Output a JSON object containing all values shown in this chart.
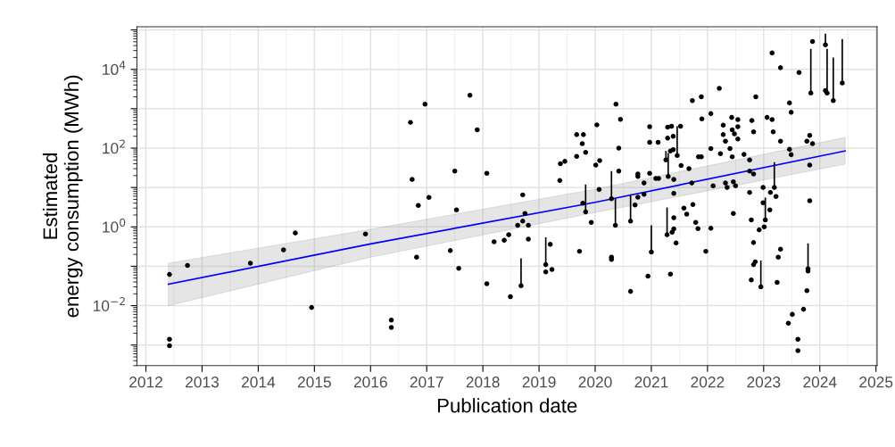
{
  "chart_data": {
    "type": "scatter",
    "xlabel": "Publication date",
    "ylabel": "Estimated\nenergy consumption (MWh)",
    "log": "y",
    "grid": true,
    "xlim": [
      2011.84,
      2025.02
    ],
    "xticks": [
      2012,
      2013,
      2014,
      2015,
      2016,
      2017,
      2018,
      2019,
      2020,
      2021,
      2022,
      2023,
      2024,
      2025
    ],
    "ylim": [
      0.0003,
      120000
    ],
    "yticks": [
      {
        "value": 0.001,
        "label": null
      },
      {
        "value": 0.01,
        "label": "10$^{−2}$"
      },
      {
        "value": 0.1,
        "label": null
      },
      {
        "value": 1,
        "label": "10$^{0}$"
      },
      {
        "value": 10,
        "label": null
      },
      {
        "value": 100,
        "label": "10$^{2}$"
      },
      {
        "value": 1000,
        "label": null
      },
      {
        "value": 10000,
        "label": "10$^{4}$"
      },
      {
        "value": 100000,
        "label": null
      }
    ],
    "series": [
      {
        "marker": "circle",
        "color": "#000000",
        "x": [
          2012.42,
          2012.42,
          2012.42,
          2012.74,
          2013.86,
          2014.45,
          2014.66,
          2014.95,
          2015.91,
          2016.37,
          2016.37,
          2016.71,
          2016.74,
          2016.85,
          2016.82,
          2016.97,
          2017.04,
          2017.42,
          2017.5,
          2017.53,
          2017.57,
          2017.77,
          2017.9,
          2018.07,
          2018.07,
          2018.2,
          2018.38,
          2018.46,
          2018.49,
          2018.62,
          2018.68,
          2018.71,
          2018.71,
          2018.75,
          2018.81,
          2018.81,
          2019.12,
          2019.12,
          2019.2,
          2019.23,
          2019.37,
          2019.38,
          2019.46,
          2019.67,
          2019.79,
          2019.67,
          2019.77,
          2019.83,
          2019.78,
          2019.83,
          2019.72,
          2019.93,
          2020.01,
          2020.03,
          2020.08,
          2020.07,
          2020.29,
          2020.36,
          2020.29,
          2020.29,
          2020.37,
          2020.45,
          2020.42,
          2020.42,
          2020.63,
          2020.63,
          2020.71,
          2020.76,
          2020.76,
          2020.76,
          2020.87,
          2020.87,
          2020.94,
          2020.97,
          2020.97,
          2020.97,
          2021.0,
          2021.08,
          2021.13,
          2021.12,
          2021.26,
          2021.28,
          2021.29,
          2021.36,
          2021.29,
          2021.3,
          2021.34,
          2021.34,
          2021.39,
          2021.39,
          2021.4,
          2021.4,
          2021.4,
          2021.37,
          2021.4,
          2021.44,
          2021.46,
          2021.52,
          2021.53,
          2021.58,
          2021.63,
          2021.67,
          2021.72,
          2021.73,
          2021.74,
          2021.79,
          2021.83,
          2021.84,
          2021.89,
          2021.89,
          2021.9,
          2021.97,
          2022.06,
          2022.06,
          2022.06,
          2022.1,
          2022.21,
          2022.23,
          2022.28,
          2022.28,
          2022.32,
          2022.32,
          2022.35,
          2022.43,
          2022.54,
          2022.44,
          2022.48,
          2022.54,
          2022.54,
          2022.4,
          2022.44,
          2022.46,
          2022.5,
          2022.46,
          2022.65,
          2022.75,
          2022.75,
          2022.82,
          2022.75,
          2022.78,
          2022.79,
          2022.82,
          2022.86,
          2022.82,
          2022.85,
          2022.82,
          2022.78,
          2022.95,
          2022.92,
          2022.99,
          2022.99,
          2023.03,
          2023.01,
          2023.11,
          2023.06,
          2023.15,
          2023.17,
          2023.15,
          2023.3,
          2023.3,
          2023.19,
          2023.12,
          2023.22,
          2023.26,
          2023.3,
          2023.24,
          2023.44,
          2023.51,
          2023.46,
          2023.49,
          2023.46,
          2023.49,
          2023.61,
          2023.61,
          2023.63,
          2023.71,
          2023.77,
          2023.79,
          2023.79,
          2023.82,
          2023.82,
          2023.77,
          2023.82,
          2023.87,
          2023.84,
          2023.87,
          2024.1,
          2024.1,
          2024.13,
          2024.24,
          2024.4
        ],
        "values": [
          0.062,
          0.0014,
          0.00096,
          0.105,
          0.12,
          0.26,
          0.7,
          0.009,
          0.66,
          0.0043,
          0.0028,
          450,
          16,
          3.5,
          0.17,
          1300,
          5.6,
          0.25,
          26,
          2.7,
          0.089,
          2200,
          290,
          23,
          0.036,
          0.42,
          0.46,
          0.63,
          0.017,
          1.1,
          0.032,
          6.5,
          1.4,
          2.2,
          1.1,
          0.49,
          0.11,
          0.072,
          0.36,
          0.083,
          15,
          40,
          46,
          220,
          220,
          62,
          130,
          78,
          4,
          2.4,
          0.24,
          1.3,
          37,
          390,
          48,
          8.9,
          5.2,
          1.1,
          0.17,
          0.15,
          1300,
          540,
          100,
          26,
          1.4,
          0.023,
          3.6,
          5.7,
          22,
          19,
          6.7,
          13,
          0.056,
          350,
          140,
          23,
          0.23,
          17,
          17,
          140,
          50,
          0.63,
          340,
          360,
          180,
          19,
          0.063,
          84,
          91,
          200,
          16,
          7.1,
          1.7,
          0.73,
          0.89,
          0.39,
          65,
          360,
          36,
          3,
          2.1,
          30,
          13,
          1600,
          3.7,
          1.3,
          0.9,
          60,
          60,
          2000,
          550,
          0.24,
          750,
          97,
          0.92,
          11,
          3300,
          72,
          380,
          220,
          150,
          13,
          10,
          600,
          530,
          290,
          230,
          350,
          170,
          97,
          60,
          14,
          11,
          2.2,
          69,
          50,
          26,
          22,
          7.5,
          1.5,
          500,
          260,
          2000,
          0.4,
          0.13,
          0.11,
          0.045,
          0.03,
          0.84,
          10,
          4.1,
          1.5,
          1.0,
          2.7,
          600,
          530,
          260,
          26000,
          11000,
          150,
          10,
          7.5,
          5.9,
          0.17,
          0.27,
          0.039,
          0.0036,
          0.006,
          1400,
          810,
          93,
          68,
          0.0014,
          0.00072,
          8300,
          0.0081,
          0.024,
          0.086,
          0.076,
          4.6,
          37,
          150,
          210,
          130,
          2500,
          51000,
          42000,
          2900,
          2500,
          1600,
          4500
        ],
        "errors": [
          null,
          null,
          null,
          null,
          null,
          null,
          null,
          null,
          null,
          null,
          null,
          null,
          null,
          null,
          null,
          null,
          null,
          null,
          null,
          null,
          null,
          null,
          null,
          null,
          null,
          null,
          null,
          null,
          null,
          null,
          [
            0.032,
            0.16
          ],
          null,
          null,
          null,
          null,
          null,
          [
            0.11,
            0.54
          ],
          null,
          null,
          null,
          null,
          null,
          null,
          null,
          null,
          null,
          null,
          null,
          null,
          [
            2.4,
            12
          ],
          null,
          null,
          null,
          null,
          null,
          null,
          [
            5.2,
            26
          ],
          [
            1.1,
            5.2
          ],
          null,
          null,
          null,
          null,
          null,
          null,
          [
            1.4,
            6.7
          ],
          null,
          null,
          null,
          null,
          null,
          null,
          null,
          null,
          null,
          null,
          null,
          [
            0.23,
            1.1
          ],
          null,
          null,
          null,
          [
            50,
            84
          ],
          [
            0.63,
            3.1
          ],
          null,
          null,
          null,
          [
            19,
            75
          ],
          null,
          null,
          null,
          null,
          null,
          null,
          null,
          null,
          null,
          null,
          [
            65,
            360
          ],
          null,
          null,
          null,
          null,
          null,
          null,
          null,
          null,
          null,
          null,
          null,
          null,
          null,
          null,
          null,
          null,
          null,
          null,
          null,
          null,
          null,
          null,
          null,
          null,
          null,
          null,
          null,
          null,
          null,
          null,
          null,
          null,
          null,
          null,
          null,
          null,
          null,
          null,
          null,
          null,
          null,
          null,
          null,
          null,
          null,
          null,
          null,
          null,
          null,
          null,
          [
            0.03,
            0.14
          ],
          null,
          null,
          null,
          [
            1.5,
            5.5
          ],
          null,
          null,
          null,
          null,
          null,
          null,
          null,
          null,
          [
            10,
            44
          ],
          null,
          null,
          null,
          null,
          null,
          null,
          null,
          null,
          null,
          null,
          null,
          null,
          null,
          null,
          null,
          null,
          [
            0.086,
            0.38
          ],
          null,
          null,
          null,
          null,
          null,
          null,
          [
            2500,
            33000
          ],
          null,
          [
            42000,
            80000
          ],
          null,
          [
            2500,
            33000
          ],
          [
            1600,
            20000
          ],
          [
            4500,
            59000
          ]
        ]
      },
      {
        "type": "line",
        "color": "#0000ff",
        "x": [
          2012.4,
          2016,
          2020,
          2024.45
        ],
        "values": [
          0.035,
          0.37,
          4.2,
          85
        ],
        "lower": [
          0.01,
          0.17,
          2.3,
          39
        ],
        "upper": [
          0.12,
          0.87,
          9.1,
          186
        ]
      }
    ]
  }
}
